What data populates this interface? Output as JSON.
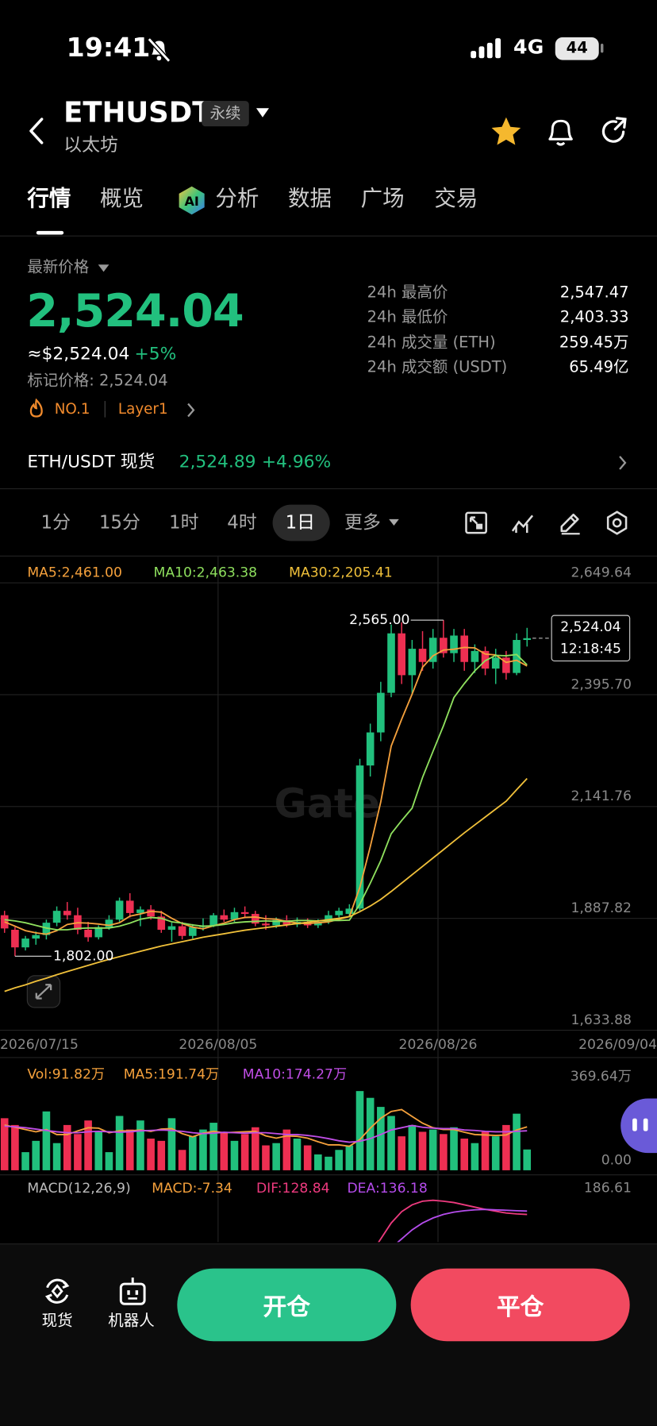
{
  "status_bar": {
    "time": "19:41",
    "network": "4G",
    "battery": "44"
  },
  "header": {
    "symbol": "ETHUSDT",
    "badge": "永续",
    "name": "以太坊"
  },
  "tabs": [
    "行情",
    "概览",
    "分析",
    "数据",
    "广场",
    "交易"
  ],
  "price": {
    "label": "最新价格",
    "last": "2,524.04",
    "usd": "≈$2,524.04",
    "change": "+5%",
    "mark": "标记价格: 2,524.04",
    "rank": "NO.1",
    "tag": "Layer1"
  },
  "stats": [
    {
      "label": "24h 最高价",
      "value": "2,547.47"
    },
    {
      "label": "24h 最低价",
      "value": "2,403.33"
    },
    {
      "label": "24h 成交量 (ETH)",
      "value": "259.45万"
    },
    {
      "label": "24h 成交额 (USDT)",
      "value": "65.49亿"
    }
  ],
  "spot": {
    "pair": "ETH/USDT 现货",
    "price": "2,524.89",
    "change": "+4.96%"
  },
  "intervals": [
    "1分",
    "15分",
    "1时",
    "4时",
    "1日",
    "更多"
  ],
  "kline": {
    "watermark": "Gate",
    "up_color": "#21c07d",
    "down_color": "#ee2f52",
    "ylim": [
      1633.88,
      2649.64
    ],
    "yticks": [
      {
        "value": 2649.64,
        "label": "2,649.64"
      },
      {
        "value": 2395.7,
        "label": "2,395.70"
      },
      {
        "value": 2141.76,
        "label": "2,141.76"
      },
      {
        "value": 1887.82,
        "label": "1,887.82"
      },
      {
        "value": 1633.88,
        "label": "1,633.88"
      }
    ],
    "x_labels": [
      "2026/07/15",
      "2026/08/05",
      "2026/08/26",
      "2026/09/04"
    ],
    "high_label": "2,565.00",
    "low_label": "1,802.00",
    "price_tag": {
      "price": "2,524.04",
      "countdown": "12:18:45"
    },
    "candles": {
      "open": [
        1895,
        1862,
        1822,
        1842,
        1850,
        1878,
        1905,
        1895,
        1862,
        1845,
        1868,
        1885,
        1928,
        1900,
        1908,
        1892,
        1862,
        1870,
        1848,
        1868,
        1872,
        1895,
        1885,
        1902,
        1898,
        1876,
        1872,
        1884,
        1874,
        1880,
        1872,
        1880,
        1895,
        1898,
        1910,
        2235,
        2310,
        2400,
        2535,
        2440,
        2500,
        2470,
        2525,
        2490,
        2530,
        2470,
        2495,
        2455,
        2480,
        2445,
        2520
      ],
      "high": [
        1905,
        1868,
        1848,
        1858,
        1885,
        1915,
        1925,
        1912,
        1880,
        1872,
        1895,
        1935,
        1945,
        1915,
        1918,
        1905,
        1878,
        1880,
        1875,
        1888,
        1900,
        1908,
        1912,
        1915,
        1905,
        1895,
        1890,
        1895,
        1890,
        1888,
        1886,
        1905,
        1912,
        1920,
        2250,
        2330,
        2425,
        2555,
        2560,
        2520,
        2540,
        2545,
        2565,
        2545,
        2545,
        2510,
        2505,
        2500,
        2495,
        2535,
        2547.47
      ],
      "low": [
        1855,
        1802,
        1815,
        1828,
        1840,
        1870,
        1885,
        1852,
        1835,
        1840,
        1862,
        1880,
        1890,
        1870,
        1885,
        1855,
        1835,
        1840,
        1842,
        1860,
        1868,
        1880,
        1880,
        1890,
        1870,
        1862,
        1866,
        1868,
        1868,
        1866,
        1866,
        1875,
        1890,
        1890,
        1905,
        2210,
        2290,
        2390,
        2420,
        2395,
        2450,
        2455,
        2480,
        2470,
        2450,
        2445,
        2440,
        2420,
        2430,
        2440,
        2505
      ],
      "close": [
        1865,
        1822,
        1842,
        1850,
        1878,
        1905,
        1895,
        1862,
        1845,
        1868,
        1885,
        1928,
        1900,
        1908,
        1892,
        1862,
        1870,
        1848,
        1868,
        1872,
        1895,
        1885,
        1902,
        1898,
        1876,
        1872,
        1884,
        1874,
        1880,
        1872,
        1880,
        1895,
        1905,
        1910,
        2235,
        2310,
        2400,
        2535,
        2440,
        2500,
        2470,
        2525,
        2490,
        2530,
        2470,
        2495,
        2455,
        2480,
        2445,
        2520,
        2524.04
      ]
    },
    "ma": [
      {
        "label": "MA5:2,461.00",
        "color": "#f5a13c",
        "values": [
          1880,
          1870,
          1860,
          1855,
          1852,
          1860,
          1874,
          1878,
          1877,
          1875,
          1872,
          1878,
          1893,
          1898,
          1904,
          1902,
          1888,
          1876,
          1868,
          1864,
          1871,
          1877,
          1885,
          1890,
          1891,
          1887,
          1886,
          1881,
          1877,
          1876,
          1878,
          1880,
          1886,
          1892,
          1958,
          2051,
          2152,
          2279,
          2340,
          2397,
          2458,
          2484,
          2497,
          2499,
          2503,
          2502,
          2488,
          2486,
          2469,
          2474,
          2461
        ]
      },
      {
        "label": "MA10:2,463.38",
        "color": "#8fe05e",
        "values": [
          1885,
          1882,
          1878,
          1872,
          1866,
          1862,
          1862,
          1865,
          1866,
          1866,
          1866,
          1870,
          1877,
          1886,
          1890,
          1888,
          1880,
          1877,
          1873,
          1870,
          1871,
          1874,
          1878,
          1880,
          1881,
          1882,
          1881,
          1881,
          1883,
          1883,
          1882,
          1883,
          1883,
          1884,
          1920,
          1968,
          2019,
          2080,
          2110,
          2138,
          2208,
          2267,
          2325,
          2389,
          2421,
          2450,
          2473,
          2485,
          2484,
          2487,
          2463.38
        ]
      },
      {
        "label": "MA30:2,205.41",
        "color": "#f0c03a",
        "values": [
          1722,
          1730,
          1737,
          1745,
          1752,
          1760,
          1767,
          1774,
          1781,
          1788,
          1795,
          1801,
          1807,
          1813,
          1819,
          1825,
          1830,
          1835,
          1840,
          1845,
          1849,
          1853,
          1857,
          1861,
          1864,
          1867,
          1870,
          1873,
          1876,
          1879,
          1882,
          1885,
          1888,
          1892,
          1903,
          1916,
          1931,
          1949,
          1968,
          1987,
          2006,
          2025,
          2044,
          2063,
          2082,
          2100,
          2118,
          2136,
          2154,
          2180,
          2205.41
        ]
      }
    ]
  },
  "volume": {
    "label": "Vol:91.82万",
    "color": "#f5a13c",
    "ylim": [
      0,
      369.64
    ],
    "yticks": [
      {
        "value": 369.64,
        "label": "369.64万"
      },
      {
        "value": 0,
        "label": "0.00"
      }
    ],
    "values": [
      230,
      200,
      80,
      130,
      260,
      120,
      200,
      160,
      220,
      170,
      80,
      240,
      180,
      220,
      140,
      130,
      230,
      90,
      150,
      180,
      210,
      170,
      130,
      160,
      190,
      110,
      120,
      180,
      140,
      110,
      70,
      60,
      90,
      110,
      350,
      320,
      280,
      240,
      150,
      200,
      170,
      180,
      160,
      190,
      140,
      120,
      170,
      150,
      200,
      250,
      91.82
    ],
    "ma": [
      {
        "label": "MA5:191.74万",
        "color": "#f5a13c",
        "values": [
          200,
          190,
          180,
          170,
          180,
          158,
          158,
          174,
          188,
          186,
          166,
          174,
          174,
          178,
          172,
          182,
          184,
          162,
          148,
          164,
          172,
          166,
          168,
          170,
          172,
          152,
          142,
          152,
          150,
          142,
          126,
          112,
          112,
          106,
          136,
          186,
          230,
          260,
          268,
          238,
          208,
          188,
          180,
          180,
          168,
          158,
          156,
          154,
          156,
          178,
          191.74
        ]
      },
      {
        "label": "MA10:174.27万",
        "color": "#c04ee6",
        "values": [
          195,
          192,
          188,
          182,
          176,
          170,
          166,
          166,
          170,
          172,
          170,
          168,
          170,
          174,
          176,
          178,
          176,
          172,
          166,
          162,
          164,
          168,
          166,
          164,
          166,
          166,
          162,
          158,
          158,
          154,
          148,
          140,
          130,
          124,
          128,
          140,
          158,
          178,
          188,
          198,
          190,
          186,
          184,
          184,
          178,
          176,
          172,
          170,
          170,
          172,
          174.27
        ]
      }
    ]
  },
  "macd": {
    "label": "MACD(12,26,9)",
    "macd_label": "MACD:-7.34",
    "macd_color": "#f5a13c",
    "ylim": [
      70,
      200
    ],
    "yticks": [
      186.61
    ],
    "lines": [
      {
        "label": "DIF:128.84",
        "color": "#ee3a7f",
        "values": [
          null,
          null,
          null,
          null,
          null,
          null,
          null,
          null,
          null,
          null,
          null,
          null,
          null,
          null,
          null,
          null,
          null,
          null,
          null,
          null,
          null,
          null,
          null,
          null,
          null,
          null,
          null,
          null,
          null,
          null,
          null,
          null,
          null,
          null,
          null,
          40,
          75,
          110,
          135,
          150,
          158,
          160,
          158,
          155,
          150,
          145,
          140,
          136,
          132,
          130,
          128.84
        ]
      },
      {
        "label": "DEA:136.18",
        "color": "#b54cec",
        "values": [
          null,
          null,
          null,
          null,
          null,
          null,
          null,
          null,
          null,
          null,
          null,
          null,
          null,
          null,
          null,
          null,
          null,
          null,
          null,
          null,
          null,
          null,
          null,
          null,
          null,
          null,
          null,
          null,
          null,
          null,
          null,
          null,
          null,
          null,
          null,
          null,
          null,
          55,
          75,
          95,
          110,
          121,
          129,
          134,
          137,
          139,
          140,
          139,
          138,
          137,
          136.18
        ]
      }
    ]
  },
  "bottom": {
    "spot": "现货",
    "robot": "机器人",
    "open": "开仓",
    "close": "平仓"
  }
}
